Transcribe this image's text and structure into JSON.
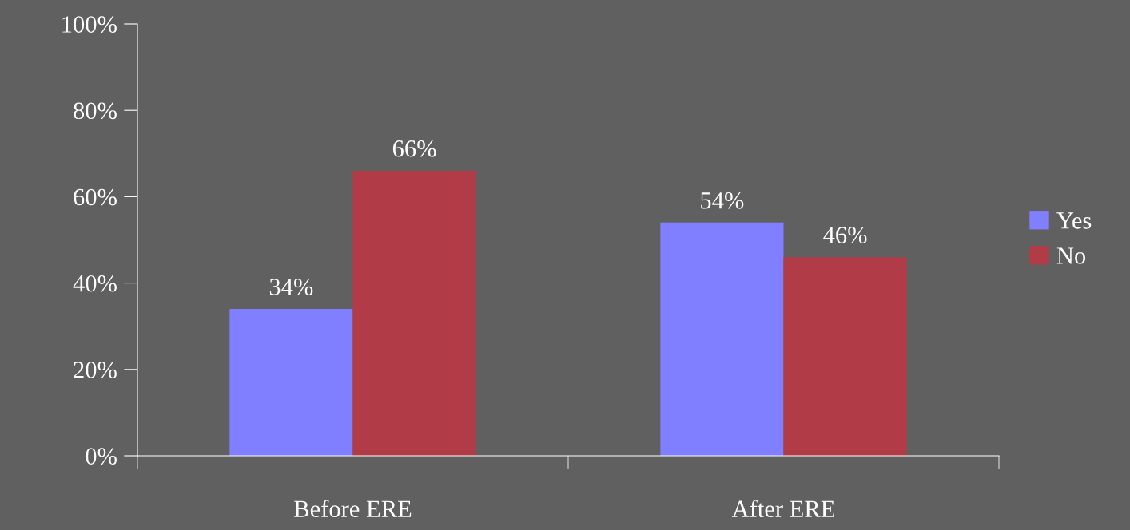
{
  "chart_data": {
    "type": "bar",
    "categories": [
      "Before ERE",
      "After ERE"
    ],
    "series": [
      {
        "name": "Yes",
        "color": "#7f7fff",
        "values": [
          34,
          54
        ],
        "value_labels": [
          "34%",
          "54%"
        ]
      },
      {
        "name": "No",
        "color": "#b13b46",
        "values": [
          66,
          46
        ],
        "value_labels": [
          "66%",
          "46%"
        ]
      }
    ],
    "ylim": [
      0,
      100
    ],
    "yticks": [
      {
        "value": 0,
        "label": "0%"
      },
      {
        "value": 20,
        "label": "20%"
      },
      {
        "value": 40,
        "label": "40%"
      },
      {
        "value": 60,
        "label": "60%"
      },
      {
        "value": 80,
        "label": "80%"
      },
      {
        "value": 100,
        "label": "100%"
      }
    ],
    "grid": false,
    "legend": "right"
  }
}
